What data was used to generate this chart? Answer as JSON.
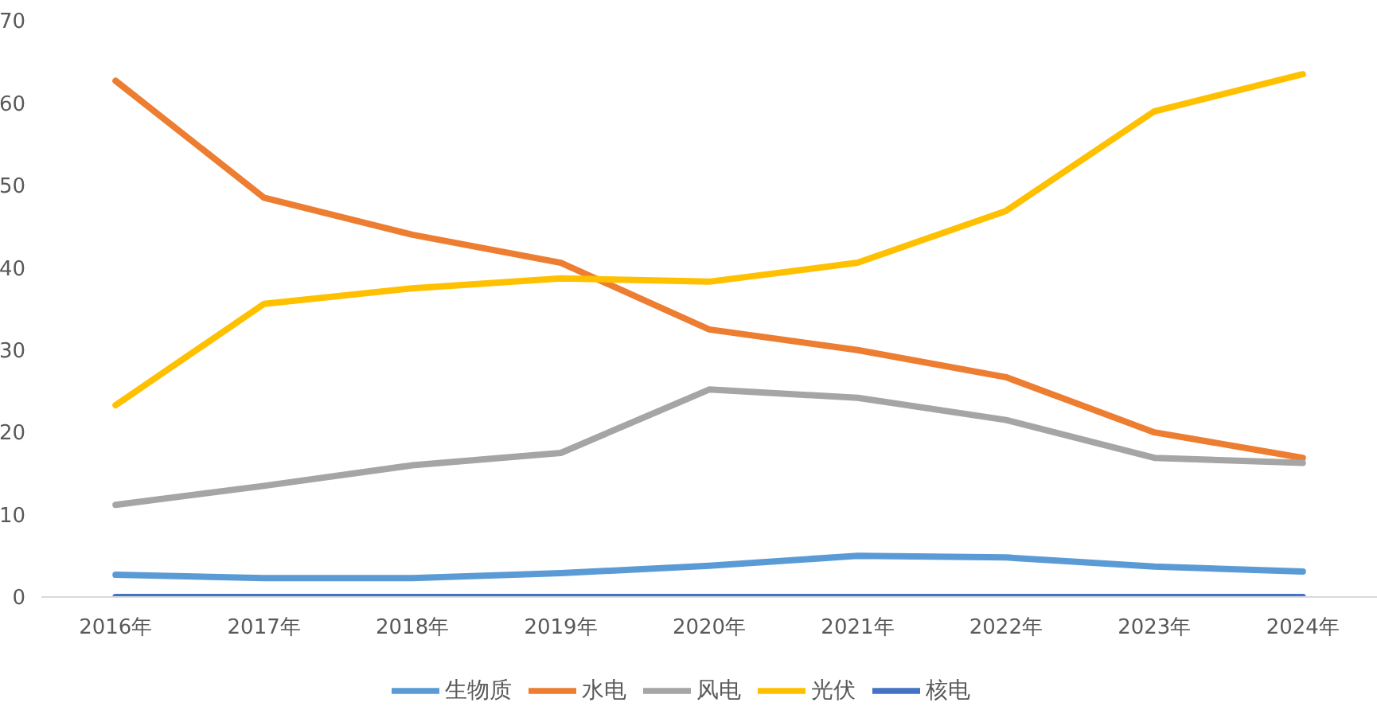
{
  "chart_data": {
    "type": "line",
    "categories": [
      "2016年",
      "2017年",
      "2018年",
      "2019年",
      "2020年",
      "2021年",
      "2022年",
      "2023年",
      "2024年"
    ],
    "series": [
      {
        "name": "生物质",
        "color": "#5b9bd5",
        "values": [
          2.7,
          2.3,
          2.3,
          2.9,
          3.8,
          5.0,
          4.8,
          3.7,
          3.1
        ]
      },
      {
        "name": "水电",
        "color": "#ed7d31",
        "values": [
          62.7,
          48.5,
          44.0,
          40.6,
          32.5,
          30.0,
          26.7,
          20.0,
          16.9
        ]
      },
      {
        "name": "风电",
        "color": "#a5a5a5",
        "values": [
          11.2,
          13.5,
          16.0,
          17.5,
          25.2,
          24.2,
          21.5,
          16.9,
          16.3
        ]
      },
      {
        "name": "光伏",
        "color": "#ffc000",
        "values": [
          23.3,
          35.6,
          37.5,
          38.7,
          38.3,
          40.6,
          46.9,
          59.0,
          63.5
        ]
      },
      {
        "name": "核电",
        "color": "#4472c4",
        "values": [
          0,
          0,
          0,
          0,
          0,
          0,
          0,
          0,
          0
        ]
      }
    ],
    "ylim": [
      0,
      70
    ],
    "yticks": [
      0,
      10,
      20,
      30,
      40,
      50,
      60,
      70
    ],
    "grid": false,
    "legend": "bottom",
    "marker": "none",
    "line_style": "solid"
  }
}
